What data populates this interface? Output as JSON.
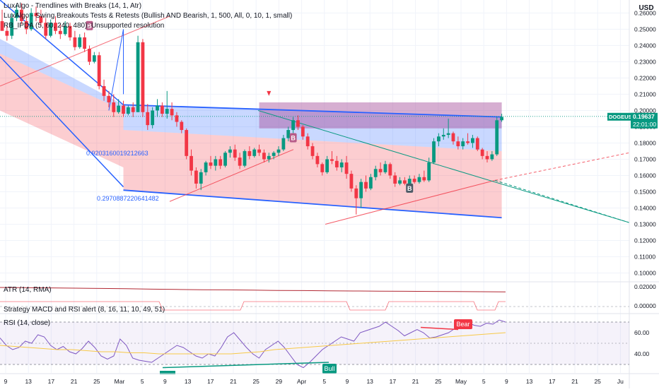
{
  "symbol": "DOGEUSD",
  "currency": "USD",
  "last_price": "0.19637",
  "countdown": "22:01:00",
  "indicators": [
    "LuxAlgo - Trendlines with Breaks (14, 1, Atr)",
    "LuxAlgo - Swing Breakouts Tests & Retests (Bullish AND Bearish, 1, 500, All, 0, 10, 1, small)",
    "RB_IPDA (5, 60, 240, 480): Unsupported resolution"
  ],
  "panes": {
    "atr_label": "ATR (14, RMA)",
    "strategy_label": "Strategy MACD and RSI alert (8, 16, 11, 10, 49, 51)",
    "rsi_label": "RSI (14, close)"
  },
  "annotations": {
    "level_1": "0.9203160019212663",
    "level_2": "0.2970887220641482",
    "bear_tag": "Bear",
    "bull_tag": "Bull",
    "break_tag": "B"
  },
  "colors": {
    "bull": "#089981",
    "bear": "#f23645",
    "channel_blue": "#2962ff",
    "label_blue": "#2962ff",
    "rsi_line": "#7e57c2",
    "rsi_ma": "#f7c948",
    "atr_line": "#b22833"
  },
  "chart_data": {
    "type": "candlestick",
    "price_axis": {
      "ticks": [
        "0.26000",
        "0.25000",
        "0.24000",
        "0.23000",
        "0.22000",
        "0.21000",
        "0.20000",
        "0.19000",
        "0.18000",
        "0.17000",
        "0.16000",
        "0.15000",
        "0.14000",
        "0.13000",
        "0.12000",
        "0.11000",
        "0.10000"
      ],
      "range": [
        0.095,
        0.268
      ]
    },
    "atr_axis": {
      "ticks": [
        "0.02000",
        "0.00000"
      ]
    },
    "rsi_axis": {
      "ticks": [
        "60.00",
        "40.00"
      ]
    },
    "time_axis": {
      "labels": [
        "9",
        "13",
        "17",
        "21",
        "25",
        "Mar",
        "5",
        "9",
        "13",
        "17",
        "21",
        "25",
        "29",
        "Apr",
        "5",
        "9",
        "13",
        "17",
        "21",
        "25",
        "May",
        "5",
        "9",
        "13",
        "17",
        "21",
        "25",
        "Ju"
      ]
    },
    "candles": [
      [
        0.255,
        0.262,
        0.25,
        0.249
      ],
      [
        0.249,
        0.252,
        0.243,
        0.246
      ],
      [
        0.246,
        0.26,
        0.244,
        0.257
      ],
      [
        0.257,
        0.265,
        0.255,
        0.262
      ],
      [
        0.262,
        0.266,
        0.253,
        0.255
      ],
      [
        0.255,
        0.258,
        0.247,
        0.25
      ],
      [
        0.25,
        0.263,
        0.249,
        0.26
      ],
      [
        0.26,
        0.264,
        0.255,
        0.258
      ],
      [
        0.258,
        0.262,
        0.252,
        0.254
      ],
      [
        0.254,
        0.257,
        0.244,
        0.246
      ],
      [
        0.246,
        0.256,
        0.245,
        0.254
      ],
      [
        0.254,
        0.258,
        0.247,
        0.249
      ],
      [
        0.249,
        0.253,
        0.244,
        0.247
      ],
      [
        0.247,
        0.255,
        0.246,
        0.252
      ],
      [
        0.252,
        0.254,
        0.243,
        0.245
      ],
      [
        0.245,
        0.249,
        0.237,
        0.239
      ],
      [
        0.239,
        0.247,
        0.238,
        0.245
      ],
      [
        0.245,
        0.248,
        0.236,
        0.238
      ],
      [
        0.238,
        0.24,
        0.228,
        0.23
      ],
      [
        0.23,
        0.236,
        0.229,
        0.234
      ],
      [
        0.234,
        0.236,
        0.213,
        0.215
      ],
      [
        0.215,
        0.219,
        0.206,
        0.209
      ],
      [
        0.209,
        0.212,
        0.202,
        0.205
      ],
      [
        0.205,
        0.21,
        0.196,
        0.199
      ],
      [
        0.199,
        0.207,
        0.198,
        0.203
      ],
      [
        0.203,
        0.206,
        0.196,
        0.198
      ],
      [
        0.198,
        0.203,
        0.197,
        0.202
      ],
      [
        0.202,
        0.205,
        0.196,
        0.199
      ],
      [
        0.199,
        0.246,
        0.199,
        0.242
      ],
      [
        0.242,
        0.244,
        0.196,
        0.199
      ],
      [
        0.199,
        0.204,
        0.188,
        0.191
      ],
      [
        0.191,
        0.202,
        0.189,
        0.2
      ],
      [
        0.2,
        0.207,
        0.196,
        0.203
      ],
      [
        0.203,
        0.205,
        0.196,
        0.198
      ],
      [
        0.198,
        0.212,
        0.195,
        0.201
      ],
      [
        0.201,
        0.205,
        0.194,
        0.197
      ],
      [
        0.197,
        0.199,
        0.19,
        0.193
      ],
      [
        0.193,
        0.194,
        0.186,
        0.188
      ],
      [
        0.188,
        0.189,
        0.17,
        0.172
      ],
      [
        0.172,
        0.176,
        0.16,
        0.163
      ],
      [
        0.163,
        0.165,
        0.152,
        0.155
      ],
      [
        0.155,
        0.164,
        0.151,
        0.162
      ],
      [
        0.162,
        0.169,
        0.16,
        0.168
      ],
      [
        0.168,
        0.172,
        0.164,
        0.166
      ],
      [
        0.166,
        0.172,
        0.163,
        0.17
      ],
      [
        0.17,
        0.172,
        0.164,
        0.166
      ],
      [
        0.166,
        0.175,
        0.165,
        0.174
      ],
      [
        0.174,
        0.178,
        0.171,
        0.176
      ],
      [
        0.176,
        0.179,
        0.169,
        0.171
      ],
      [
        0.171,
        0.174,
        0.164,
        0.166
      ],
      [
        0.166,
        0.176,
        0.165,
        0.175
      ],
      [
        0.175,
        0.178,
        0.17,
        0.172
      ],
      [
        0.172,
        0.177,
        0.171,
        0.176
      ],
      [
        0.176,
        0.179,
        0.172,
        0.174
      ],
      [
        0.174,
        0.176,
        0.168,
        0.17
      ],
      [
        0.17,
        0.174,
        0.168,
        0.172
      ],
      [
        0.172,
        0.175,
        0.17,
        0.174
      ],
      [
        0.174,
        0.178,
        0.172,
        0.176
      ],
      [
        0.176,
        0.185,
        0.175,
        0.183
      ],
      [
        0.183,
        0.19,
        0.181,
        0.188
      ],
      [
        0.188,
        0.196,
        0.186,
        0.194
      ],
      [
        0.194,
        0.197,
        0.188,
        0.19
      ],
      [
        0.19,
        0.191,
        0.182,
        0.184
      ],
      [
        0.184,
        0.186,
        0.176,
        0.178
      ],
      [
        0.178,
        0.18,
        0.17,
        0.172
      ],
      [
        0.172,
        0.174,
        0.165,
        0.167
      ],
      [
        0.167,
        0.168,
        0.16,
        0.162
      ],
      [
        0.162,
        0.172,
        0.161,
        0.17
      ],
      [
        0.17,
        0.175,
        0.167,
        0.169
      ],
      [
        0.169,
        0.172,
        0.163,
        0.165
      ],
      [
        0.165,
        0.17,
        0.162,
        0.168
      ],
      [
        0.168,
        0.172,
        0.158,
        0.161
      ],
      [
        0.161,
        0.163,
        0.15,
        0.152
      ],
      [
        0.152,
        0.154,
        0.136,
        0.146
      ],
      [
        0.146,
        0.158,
        0.14,
        0.156
      ],
      [
        0.156,
        0.16,
        0.15,
        0.152
      ],
      [
        0.152,
        0.161,
        0.151,
        0.159
      ],
      [
        0.159,
        0.166,
        0.157,
        0.164
      ],
      [
        0.164,
        0.168,
        0.16,
        0.162
      ],
      [
        0.162,
        0.169,
        0.161,
        0.167
      ],
      [
        0.167,
        0.168,
        0.158,
        0.16
      ],
      [
        0.16,
        0.162,
        0.153,
        0.155
      ],
      [
        0.155,
        0.159,
        0.154,
        0.157
      ],
      [
        0.157,
        0.159,
        0.154,
        0.155
      ],
      [
        0.155,
        0.16,
        0.154,
        0.158
      ],
      [
        0.158,
        0.16,
        0.155,
        0.156
      ],
      [
        0.156,
        0.161,
        0.155,
        0.159
      ],
      [
        0.159,
        0.163,
        0.156,
        0.157
      ],
      [
        0.157,
        0.171,
        0.156,
        0.168
      ],
      [
        0.168,
        0.183,
        0.167,
        0.181
      ],
      [
        0.181,
        0.186,
        0.178,
        0.184
      ],
      [
        0.184,
        0.189,
        0.182,
        0.185
      ],
      [
        0.185,
        0.195,
        0.183,
        0.186
      ],
      [
        0.186,
        0.187,
        0.179,
        0.181
      ],
      [
        0.181,
        0.184,
        0.176,
        0.178
      ],
      [
        0.178,
        0.183,
        0.176,
        0.181
      ],
      [
        0.181,
        0.186,
        0.179,
        0.18
      ],
      [
        0.18,
        0.185,
        0.177,
        0.183
      ],
      [
        0.183,
        0.184,
        0.175,
        0.176
      ],
      [
        0.176,
        0.177,
        0.17,
        0.172
      ],
      [
        0.172,
        0.175,
        0.168,
        0.17
      ],
      [
        0.17,
        0.175,
        0.169,
        0.173
      ],
      [
        0.173,
        0.196,
        0.172,
        0.194
      ],
      [
        0.194,
        0.198,
        0.193,
        0.196
      ]
    ],
    "atr_values": [
      0.0125,
      0.0124,
      0.0122,
      0.012,
      0.0118,
      0.0116,
      0.0113,
      0.0111,
      0.0109,
      0.0108,
      0.0106,
      0.0104,
      0.0103,
      0.0101,
      0.01,
      0.0099,
      0.0098,
      0.0097,
      0.0096,
      0.0095,
      0.0094
    ],
    "rsi_values": [
      55,
      48,
      44,
      46,
      52,
      50,
      58,
      56,
      48,
      44,
      47,
      42,
      40,
      45,
      52,
      46,
      38,
      35,
      38,
      54,
      48,
      36,
      34,
      33,
      32,
      36,
      40,
      44,
      48,
      46,
      42,
      38,
      36,
      40,
      38,
      46,
      56,
      60,
      53,
      46,
      40,
      36,
      44,
      48,
      52,
      46,
      38,
      30,
      27,
      32,
      38,
      44,
      48,
      52,
      56,
      54,
      52,
      60,
      62,
      64,
      66,
      70,
      66,
      62,
      57,
      60,
      63,
      60,
      55,
      56,
      58,
      60,
      64,
      68,
      70,
      67,
      66,
      69,
      68,
      72,
      70
    ],
    "rsi_ma_values": [
      48,
      47,
      46,
      45,
      44,
      44,
      43,
      42,
      42,
      41,
      41,
      40,
      40,
      40,
      40,
      40,
      40,
      41,
      42,
      44,
      45,
      46,
      47,
      48,
      49,
      50,
      51,
      52,
      53,
      54,
      55,
      56,
      57,
      58,
      59,
      60
    ],
    "channel": {
      "upper": [
        [
          0.248,
          0.201
        ],
        [
          0.198,
          0.196
        ]
      ],
      "lower": [
        [
          0.199,
          0.15
        ],
        [
          0.151,
          0.132
        ]
      ]
    },
    "markers": {
      "bear_rsi": 68,
      "bull_rsi": 26
    }
  }
}
